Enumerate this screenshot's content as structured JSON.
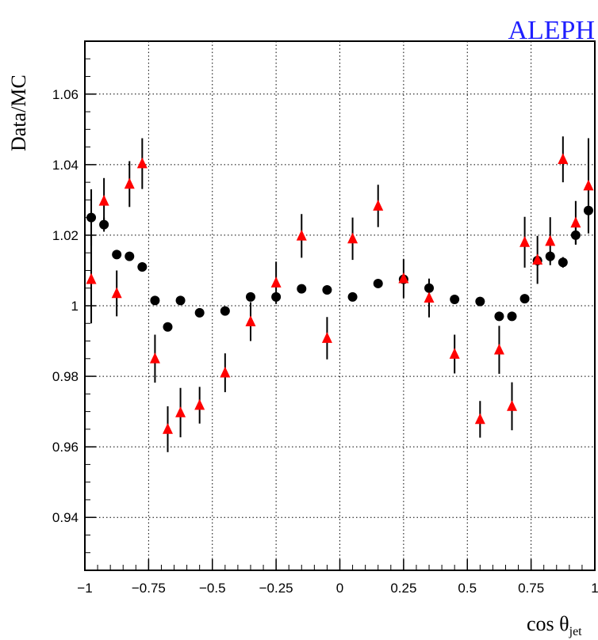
{
  "chart_data": {
    "type": "scatter",
    "brand": "ALEPH",
    "ylabel": "Data/MC",
    "xlabel": "cos θ",
    "xlabel_sub": "jet",
    "xlim": [
      -1,
      1
    ],
    "ylim": [
      0.925,
      1.075
    ],
    "x_ticks": [
      {
        "v": -1,
        "label": "−1"
      },
      {
        "v": -0.75,
        "label": "−0.75"
      },
      {
        "v": -0.5,
        "label": "−0.5"
      },
      {
        "v": -0.25,
        "label": "−0.25"
      },
      {
        "v": 0,
        "label": "0"
      },
      {
        "v": 0.25,
        "label": "0.25"
      },
      {
        "v": 0.5,
        "label": "0.5"
      },
      {
        "v": 0.75,
        "label": "0.75"
      },
      {
        "v": 1,
        "label": "1"
      }
    ],
    "y_ticks": [
      {
        "v": 0.94,
        "label": "0.94"
      },
      {
        "v": 0.96,
        "label": "0.96"
      },
      {
        "v": 0.98,
        "label": "0.98"
      },
      {
        "v": 1.0,
        "label": "1"
      },
      {
        "v": 1.02,
        "label": "1.02"
      },
      {
        "v": 1.04,
        "label": "1.04"
      },
      {
        "v": 1.06,
        "label": "1.06"
      }
    ],
    "grid": true,
    "series": [
      {
        "marker": "circle",
        "color": "#000000",
        "points": [
          {
            "x": -0.975,
            "y": 1.025,
            "err": 0.008
          },
          {
            "x": -0.925,
            "y": 1.023,
            "err": 0.002
          },
          {
            "x": -0.875,
            "y": 1.0145,
            "err": 0.0012
          },
          {
            "x": -0.825,
            "y": 1.014,
            "err": 0.0012
          },
          {
            "x": -0.775,
            "y": 1.011,
            "err": 0.0012
          },
          {
            "x": -0.725,
            "y": 1.0015,
            "err": 0.0012
          },
          {
            "x": -0.675,
            "y": 0.994,
            "err": 0.0012
          },
          {
            "x": -0.625,
            "y": 1.0015,
            "err": 0.0012
          },
          {
            "x": -0.55,
            "y": 0.998,
            "err": 0.0008
          },
          {
            "x": -0.45,
            "y": 0.9985,
            "err": 0.0008
          },
          {
            "x": -0.35,
            "y": 1.0025,
            "err": 0.0008
          },
          {
            "x": -0.25,
            "y": 1.0025,
            "err": 0.0008
          },
          {
            "x": -0.15,
            "y": 1.0048,
            "err": 0.0008
          },
          {
            "x": -0.05,
            "y": 1.0045,
            "err": 0.0008
          },
          {
            "x": 0.05,
            "y": 1.0025,
            "err": 0.0008
          },
          {
            "x": 0.15,
            "y": 1.0063,
            "err": 0.0008
          },
          {
            "x": 0.25,
            "y": 1.0075,
            "err": 0.0008
          },
          {
            "x": 0.35,
            "y": 1.005,
            "err": 0.0025
          },
          {
            "x": 0.45,
            "y": 1.0018,
            "err": 0.0008
          },
          {
            "x": 0.55,
            "y": 1.0012,
            "err": 0.0008
          },
          {
            "x": 0.625,
            "y": 0.997,
            "err": 0.0012
          },
          {
            "x": 0.675,
            "y": 0.997,
            "err": 0.0012
          },
          {
            "x": 0.725,
            "y": 1.002,
            "err": 0.0012
          },
          {
            "x": 0.775,
            "y": 1.0128,
            "err": 0.0012
          },
          {
            "x": 0.825,
            "y": 1.014,
            "err": 0.0015
          },
          {
            "x": 0.875,
            "y": 1.0123,
            "err": 0.0015
          },
          {
            "x": 0.925,
            "y": 1.02,
            "err": 0.0025
          },
          {
            "x": 0.975,
            "y": 1.027,
            "err": 0.006
          }
        ]
      },
      {
        "marker": "triangle",
        "color": "#ff0000",
        "points": [
          {
            "x": -0.975,
            "y": 1.0075,
            "err": 0.0125
          },
          {
            "x": -0.925,
            "y": 1.0297,
            "err": 0.0065
          },
          {
            "x": -0.875,
            "y": 1.0035,
            "err": 0.0065
          },
          {
            "x": -0.825,
            "y": 1.0345,
            "err": 0.0065
          },
          {
            "x": -0.775,
            "y": 1.0403,
            "err": 0.0072
          },
          {
            "x": -0.725,
            "y": 0.985,
            "err": 0.0068
          },
          {
            "x": -0.675,
            "y": 0.965,
            "err": 0.0065
          },
          {
            "x": -0.625,
            "y": 0.9697,
            "err": 0.007
          },
          {
            "x": -0.55,
            "y": 0.9718,
            "err": 0.0052
          },
          {
            "x": -0.45,
            "y": 0.981,
            "err": 0.0055
          },
          {
            "x": -0.35,
            "y": 0.9955,
            "err": 0.0055
          },
          {
            "x": -0.25,
            "y": 1.0065,
            "err": 0.006
          },
          {
            "x": -0.15,
            "y": 1.0198,
            "err": 0.0062
          },
          {
            "x": -0.05,
            "y": 0.9908,
            "err": 0.006
          },
          {
            "x": 0.05,
            "y": 1.019,
            "err": 0.006
          },
          {
            "x": 0.15,
            "y": 1.0283,
            "err": 0.006
          },
          {
            "x": 0.25,
            "y": 1.0077,
            "err": 0.0055
          },
          {
            "x": 0.35,
            "y": 1.0022,
            "err": 0.0055
          },
          {
            "x": 0.45,
            "y": 0.9863,
            "err": 0.0055
          },
          {
            "x": 0.55,
            "y": 0.9678,
            "err": 0.0052
          },
          {
            "x": 0.625,
            "y": 0.9875,
            "err": 0.0068
          },
          {
            "x": 0.675,
            "y": 0.9715,
            "err": 0.0068
          },
          {
            "x": 0.725,
            "y": 1.018,
            "err": 0.0072
          },
          {
            "x": 0.775,
            "y": 1.013,
            "err": 0.0068
          },
          {
            "x": 0.825,
            "y": 1.0183,
            "err": 0.0068
          },
          {
            "x": 0.875,
            "y": 1.0415,
            "err": 0.0065
          },
          {
            "x": 0.925,
            "y": 1.0235,
            "err": 0.0062
          },
          {
            "x": 0.975,
            "y": 1.034,
            "err": 0.0135
          }
        ]
      }
    ]
  }
}
